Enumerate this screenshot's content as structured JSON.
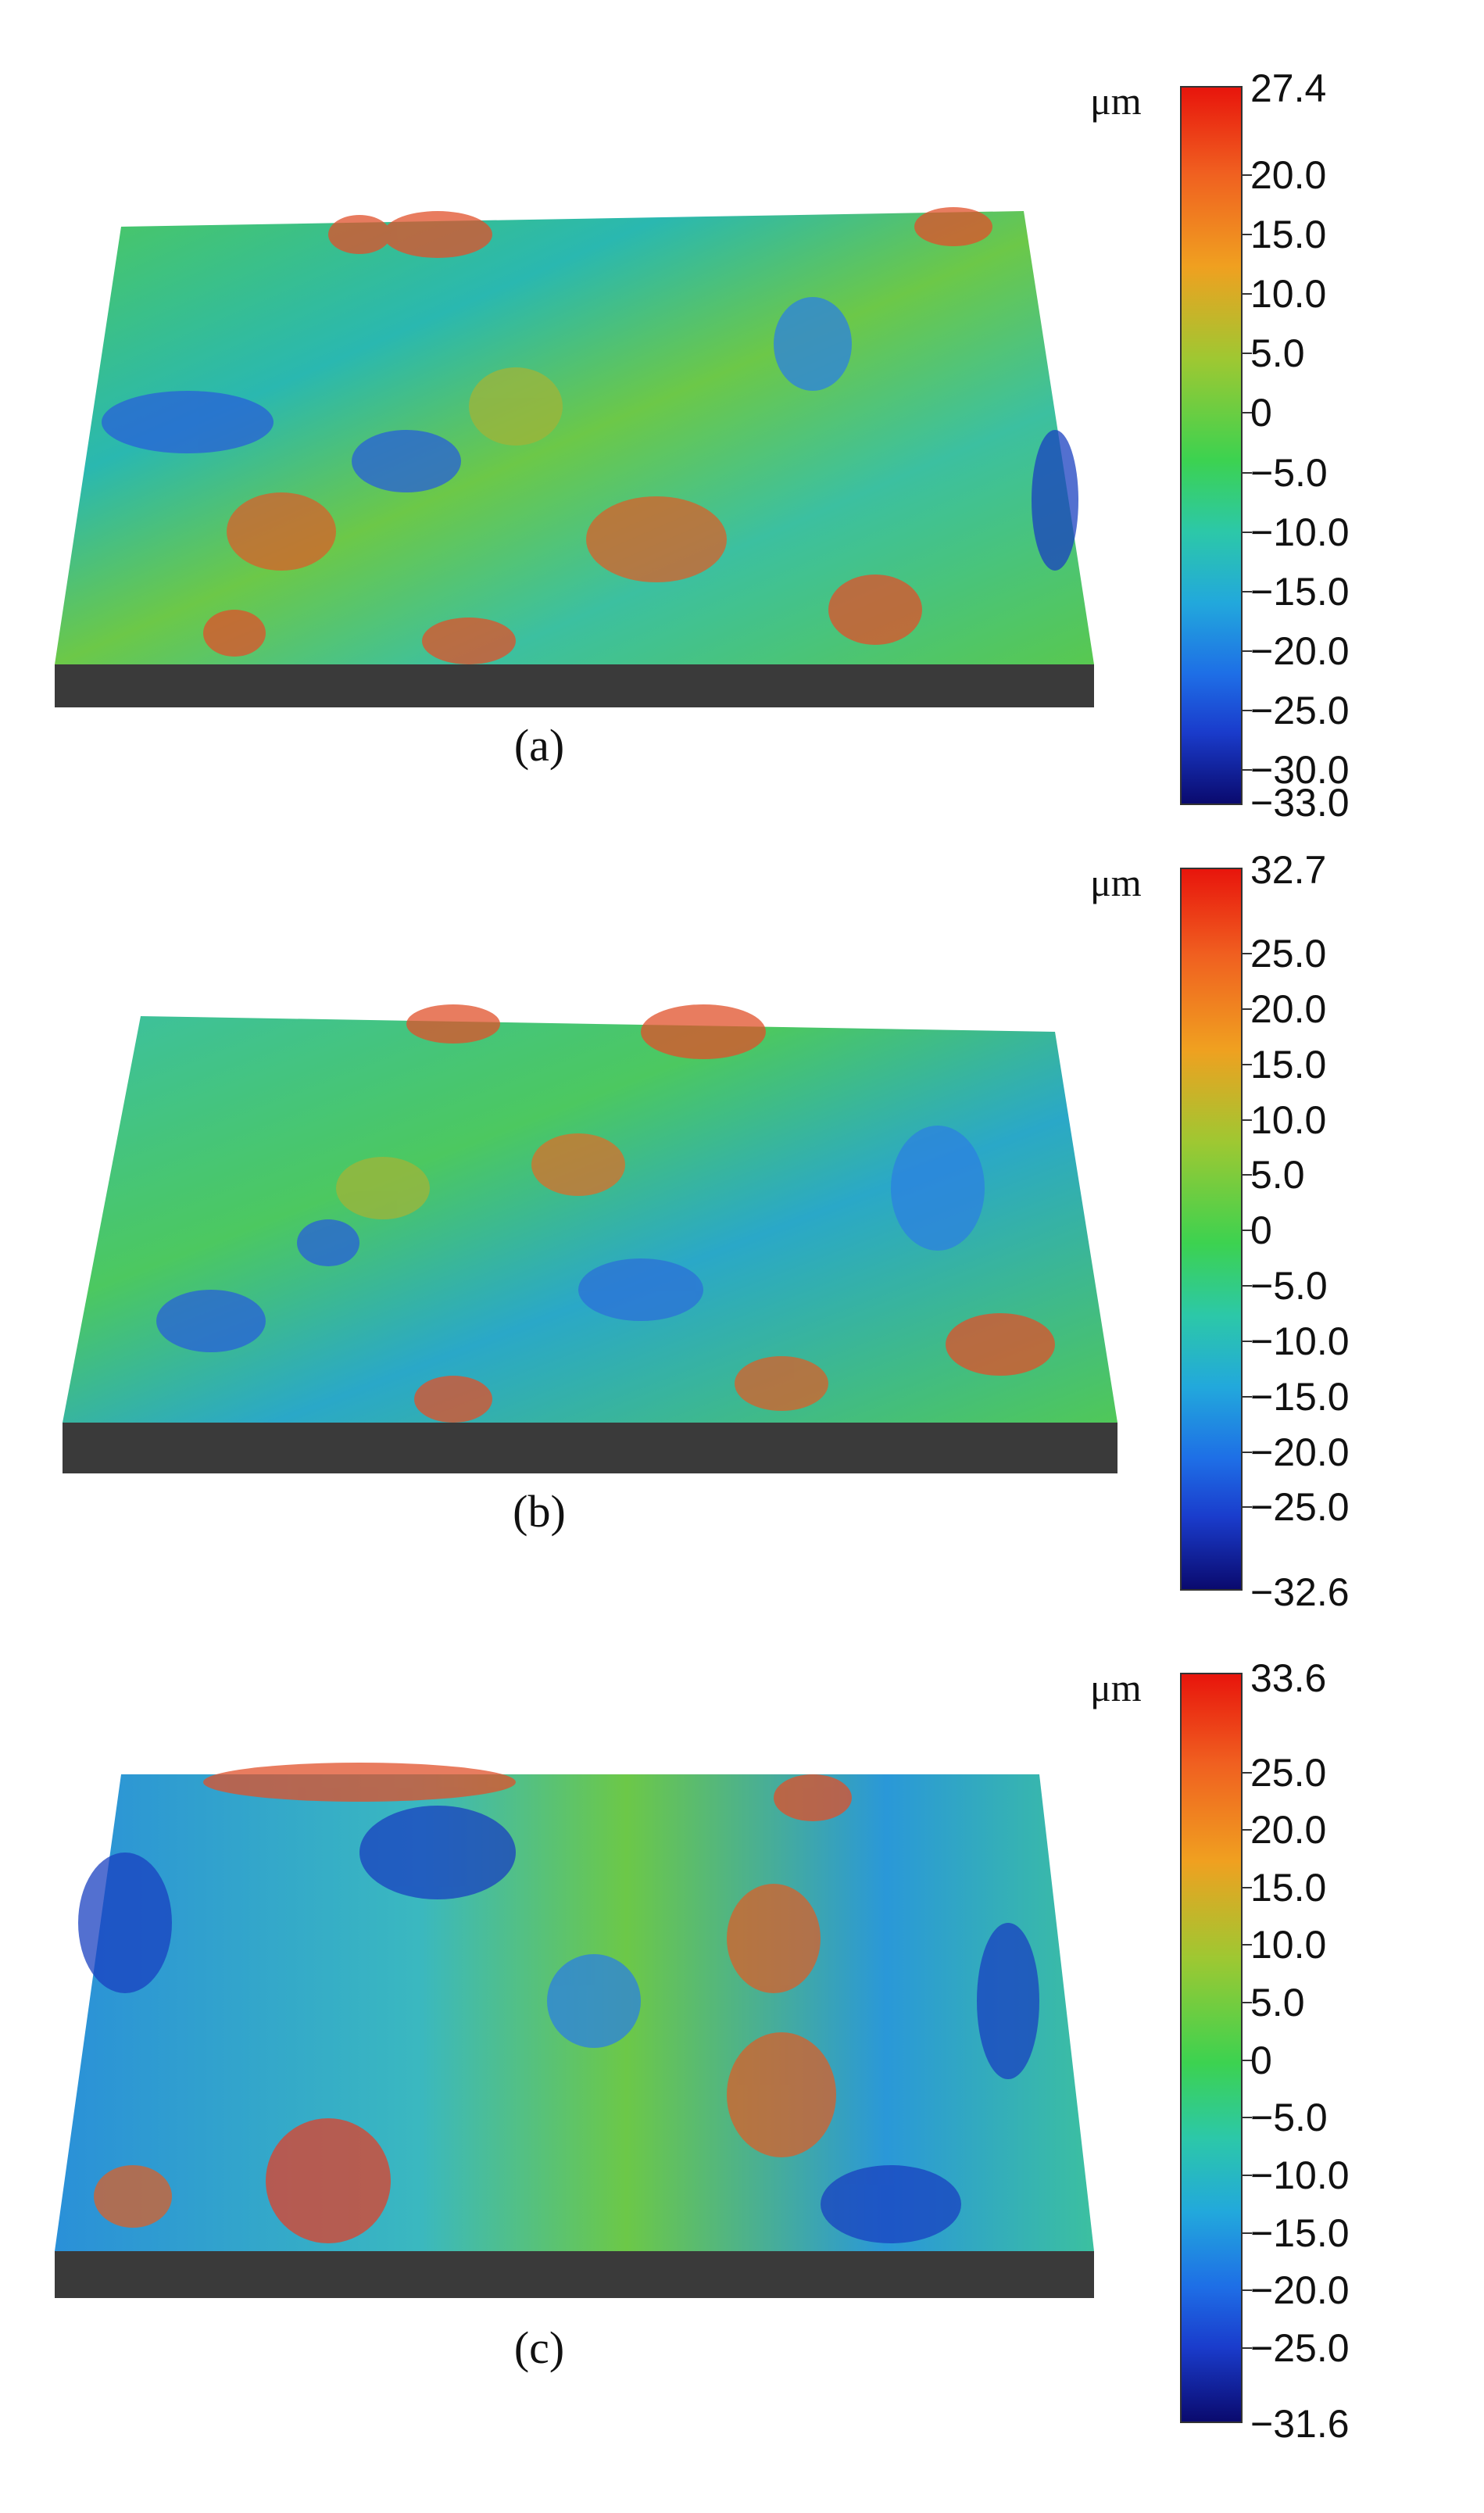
{
  "unit": "μm",
  "panels": [
    {
      "caption": "(a)",
      "scale_max": "27.4",
      "scale_min": "−33.0",
      "ticks": [
        "20.0",
        "15.0",
        "10.0",
        "5.0",
        "0",
        "−5.0",
        "−10.0",
        "−15.0",
        "−20.0",
        "−25.0",
        "−30.0"
      ],
      "tick_values": [
        20,
        15,
        10,
        5,
        0,
        -5,
        -10,
        -15,
        -20,
        -25,
        -30
      ],
      "range": [
        -33.0,
        27.4
      ]
    },
    {
      "caption": "(b)",
      "scale_max": "32.7",
      "scale_min": "−32.6",
      "ticks": [
        "25.0",
        "20.0",
        "15.0",
        "10.0",
        "5.0",
        "0",
        "−5.0",
        "−10.0",
        "−15.0",
        "−20.0",
        "−25.0"
      ],
      "tick_values": [
        25,
        20,
        15,
        10,
        5,
        0,
        -5,
        -10,
        -15,
        -20,
        -25
      ],
      "range": [
        -32.6,
        32.7
      ]
    },
    {
      "caption": "(c)",
      "scale_max": "33.6",
      "scale_min": "−31.6",
      "ticks": [
        "25.0",
        "20.0",
        "15.0",
        "10.0",
        "5.0",
        "0",
        "−5.0",
        "−10.0",
        "−15.0",
        "−20.0",
        "−25.0"
      ],
      "tick_values": [
        25,
        20,
        15,
        10,
        5,
        0,
        -5,
        -10,
        -15,
        -20,
        -25
      ],
      "range": [
        -31.6,
        33.6
      ]
    }
  ],
  "colors": {
    "high": "#e8150c",
    "mid": "#3cd250",
    "low": "#0a0a6e",
    "base": "#3a3a3a"
  }
}
